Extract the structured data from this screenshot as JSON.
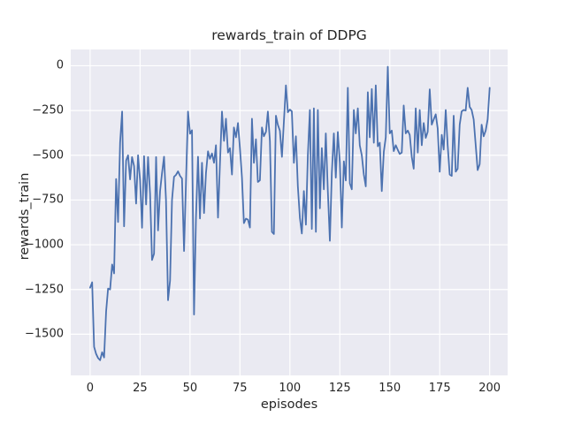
{
  "chart_data": {
    "type": "line",
    "title": "rewards_train of DDPG",
    "xlabel": "episodes",
    "ylabel": "rewards_train",
    "style": "seaborn-darkgrid",
    "grid": true,
    "legend_position": "none",
    "plot_background": "#eaeaf2",
    "grid_color": "#ffffff",
    "text_color": "#262626",
    "line_color": "#4c72b0",
    "x_ticks": [
      0,
      25,
      50,
      75,
      100,
      125,
      150,
      175,
      200
    ],
    "x_tick_labels": [
      "0",
      "25",
      "50",
      "75",
      "100",
      "125",
      "150",
      "175",
      "200"
    ],
    "y_ticks": [
      0,
      -250,
      -500,
      -750,
      -1000,
      -1250,
      -1500
    ],
    "y_tick_labels": [
      "0",
      "−250",
      "−500",
      "−750",
      "−1000",
      "−1250",
      "−1500"
    ],
    "xlim": [
      -9.7,
      209.0
    ],
    "ylim": [
      -1730,
      91
    ],
    "x_start": 0,
    "x_step": 1,
    "series": [
      {
        "name": "rewards_train",
        "values": [
          -1240,
          -1210,
          -1570,
          -1610,
          -1633,
          -1645,
          -1600,
          -1630,
          -1372,
          -1245,
          -1250,
          -1110,
          -1160,
          -633,
          -873,
          -430,
          -256,
          -897,
          -530,
          -500,
          -635,
          -510,
          -560,
          -770,
          -500,
          -640,
          -905,
          -505,
          -775,
          -510,
          -715,
          -1085,
          -1050,
          -510,
          -920,
          -700,
          -600,
          -508,
          -750,
          -1310,
          -1200,
          -750,
          -620,
          -610,
          -590,
          -615,
          -630,
          -1035,
          -650,
          -256,
          -380,
          -360,
          -1390,
          -850,
          -508,
          -853,
          -542,
          -823,
          -600,
          -478,
          -520,
          -490,
          -542,
          -444,
          -848,
          -550,
          -256,
          -420,
          -296,
          -485,
          -460,
          -608,
          -345,
          -400,
          -320,
          -460,
          -625,
          -879,
          -854,
          -860,
          -904,
          -296,
          -542,
          -411,
          -649,
          -640,
          -345,
          -394,
          -370,
          -256,
          -420,
          -928,
          -940,
          -279,
          -330,
          -363,
          -509,
          -312,
          -110,
          -260,
          -245,
          -255,
          -542,
          -394,
          -674,
          -850,
          -937,
          -700,
          -888,
          -500,
          -247,
          -912,
          -238,
          -928,
          -247,
          -797,
          -460,
          -690,
          -378,
          -700,
          -978,
          -600,
          -378,
          -625,
          -370,
          -542,
          -904,
          -534,
          -641,
          -123,
          -657,
          -690,
          -247,
          -378,
          -238,
          -444,
          -500,
          -608,
          -674,
          -148,
          -400,
          -130,
          -430,
          -110,
          -450,
          -430,
          -700,
          -480,
          -400,
          -5,
          -378,
          -362,
          -477,
          -444,
          -470,
          -493,
          -485,
          -222,
          -378,
          -362,
          -386,
          -509,
          -575,
          -238,
          -485,
          -247,
          -444,
          -320,
          -403,
          -370,
          -132,
          -329,
          -300,
          -271,
          -350,
          -592,
          -386,
          -468,
          -247,
          -444,
          -608,
          -615,
          -279,
          -592,
          -575,
          -329,
          -255,
          -247,
          -250,
          -123,
          -230,
          -247,
          -300,
          -444,
          -583,
          -550,
          -329,
          -394,
          -362,
          -300,
          -123
        ]
      }
    ]
  }
}
